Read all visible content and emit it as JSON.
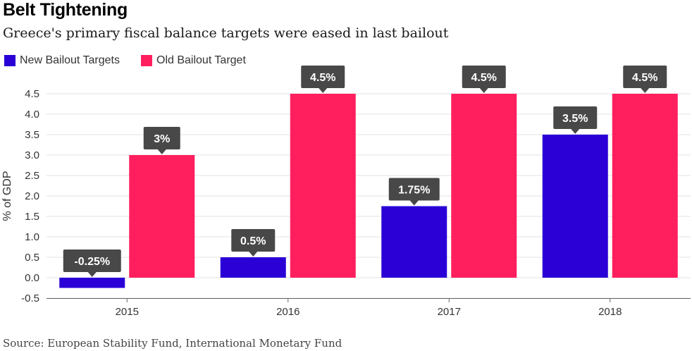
{
  "header": {
    "title": "Belt Tightening",
    "subtitle": "Greece's primary fiscal balance targets were eased in last bailout"
  },
  "legend": {
    "items": [
      {
        "label": "New Bailout Targets",
        "color": "#2a00d6"
      },
      {
        "label": "Old Bailout Target",
        "color": "#ff1f5f"
      }
    ]
  },
  "footer": {
    "source": "Source: European Stability Fund, International Monetary Fund"
  },
  "chart_data": {
    "type": "bar",
    "title": "Belt Tightening",
    "subtitle": "Greece's primary fiscal balance targets were eased in last bailout",
    "xlabel": "",
    "ylabel": "% of GDP",
    "categories": [
      "2015",
      "2016",
      "2017",
      "2018"
    ],
    "series": [
      {
        "name": "New Bailout Targets",
        "color": "#2a00d6",
        "values": [
          -0.25,
          0.5,
          1.75,
          3.5
        ],
        "labels": [
          "-0.25%",
          "0.5%",
          "1.75%",
          "3.5%"
        ]
      },
      {
        "name": "Old Bailout Target",
        "color": "#ff1f5f",
        "values": [
          3,
          4.5,
          4.5,
          4.5
        ],
        "labels": [
          "3%",
          "4.5%",
          "4.5%",
          "4.5%"
        ]
      }
    ],
    "ylim": [
      -0.5,
      4.5
    ],
    "yticks": [
      "-0.5",
      "0.0",
      "0.5",
      "1.0",
      "1.5",
      "2.0",
      "2.5",
      "3.0",
      "3.5",
      "4.0",
      "4.5"
    ],
    "grid": true,
    "legend_position": "top-left"
  }
}
